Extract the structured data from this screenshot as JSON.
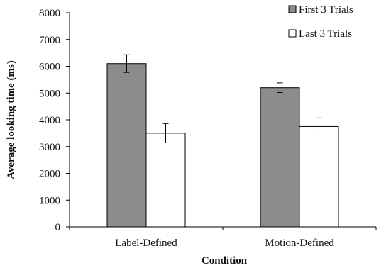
{
  "chart_data": {
    "type": "bar",
    "title": "",
    "xlabel": "Condition",
    "ylabel": "Average looking time (ms)",
    "ylim": [
      0,
      8000
    ],
    "yticks": [
      0,
      1000,
      2000,
      3000,
      4000,
      5000,
      6000,
      7000,
      8000
    ],
    "categories": [
      "Label-Defined",
      "Motion-Defined"
    ],
    "series": [
      {
        "name": "First 3 Trials",
        "values": [
          6100,
          5200
        ],
        "errors": [
          330,
          180
        ],
        "color": "#8c8c8c"
      },
      {
        "name": "Last 3 Trials",
        "values": [
          3500,
          3750
        ],
        "errors": [
          360,
          320
        ],
        "color": "#ffffff"
      }
    ],
    "legend_position": "top-right",
    "grid": false
  }
}
